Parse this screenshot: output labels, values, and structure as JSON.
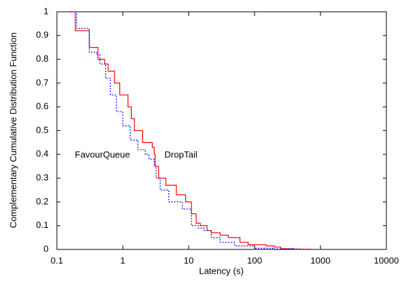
{
  "chart_data": {
    "type": "line",
    "x_label": "Latency (s)",
    "y_label": "Complementary Cumulative Distribution Function",
    "xscale": "log",
    "xlim": [
      0.1,
      10000
    ],
    "xticks": [
      0.1,
      1,
      10,
      100,
      1000,
      10000
    ],
    "ylim": [
      0,
      1
    ],
    "yticks": [
      0,
      0.1,
      0.2,
      0.3,
      0.4,
      0.5,
      0.6,
      0.7,
      0.8,
      0.9,
      1
    ],
    "annotations": [
      "FavourQueue",
      "DropTail"
    ],
    "series": [
      {
        "name": "DropTail",
        "color": "#ff0000",
        "dash": "solid",
        "x": [
          0.16,
          0.19,
          0.31,
          0.42,
          0.53,
          0.6,
          0.75,
          0.9,
          1.2,
          1.35,
          1.5,
          2.0,
          2.8,
          3.0,
          3.1,
          3.5,
          4.5,
          6.5,
          9,
          11,
          13,
          15,
          19,
          22,
          30,
          40,
          60,
          80,
          150,
          200,
          250,
          400,
          700
        ],
        "values": [
          1,
          0.92,
          0.85,
          0.8,
          0.78,
          0.75,
          0.7,
          0.65,
          0.6,
          0.55,
          0.5,
          0.45,
          0.43,
          0.4,
          0.35,
          0.3,
          0.27,
          0.23,
          0.2,
          0.15,
          0.11,
          0.1,
          0.08,
          0.07,
          0.06,
          0.05,
          0.03,
          0.02,
          0.015,
          0.01,
          0.003,
          0.001,
          0
        ]
      },
      {
        "name": "FavourQueue",
        "color": "#0000ff",
        "dash": "dotted",
        "x": [
          0.16,
          0.2,
          0.3,
          0.31,
          0.4,
          0.45,
          0.55,
          0.65,
          0.8,
          1.0,
          1.3,
          1.7,
          2.2,
          2.5,
          3.0,
          3.2,
          3.7,
          5,
          8,
          11,
          14,
          17,
          22,
          30,
          50,
          100,
          200,
          500
        ],
        "values": [
          1,
          0.93,
          0.93,
          0.83,
          0.82,
          0.78,
          0.72,
          0.65,
          0.58,
          0.52,
          0.46,
          0.42,
          0.4,
          0.38,
          0.35,
          0.3,
          0.25,
          0.2,
          0.17,
          0.1,
          0.09,
          0.08,
          0.05,
          0.03,
          0.015,
          0.005,
          0.002,
          0
        ]
      }
    ]
  }
}
